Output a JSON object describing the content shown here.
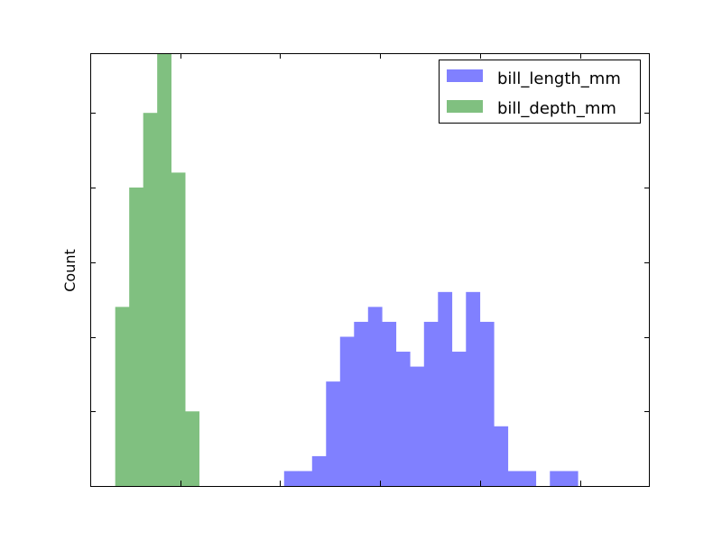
{
  "chart_data": {
    "type": "bar",
    "title": "",
    "xlabel": "",
    "ylabel": "Count",
    "xlim": [
      11,
      67
    ],
    "ylim": [
      0,
      29
    ],
    "grid": false,
    "legend_position": "top-right",
    "bin_width": 1.4,
    "series": [
      {
        "name": "bill_length_mm",
        "color": "#8080ff",
        "start": 30.4,
        "counts": [
          1,
          1,
          2,
          7,
          10,
          11,
          12,
          11,
          9,
          8,
          11,
          13,
          9,
          13,
          11,
          4,
          1,
          1,
          0,
          1,
          1
        ]
      },
      {
        "name": "bill_depth_mm",
        "color": "#80c080",
        "start": 13.5,
        "counts": [
          12,
          20,
          25,
          29,
          21,
          5
        ]
      }
    ]
  }
}
